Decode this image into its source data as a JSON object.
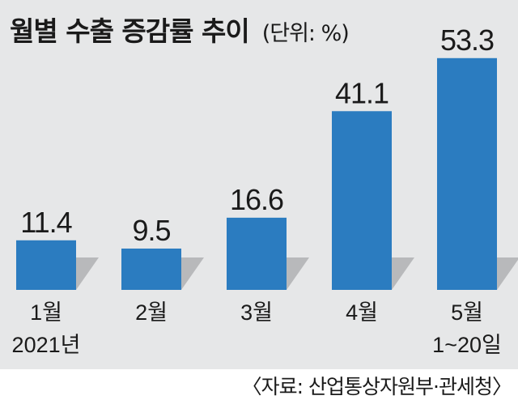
{
  "header": {
    "title": "월별 수출 증감률 추이",
    "unit": "(단위: %)"
  },
  "source": "〈자료: 산업통상자원부·관세청〉",
  "colors": {
    "bar": "#2b7cc0",
    "shadow": "#b8b9bb",
    "panel": "#e6e7e8"
  },
  "chart_data": {
    "type": "bar",
    "title": "월별 수출 증감률 추이",
    "unit": "(단위: %)",
    "categories": [
      [
        "1월",
        "2021년"
      ],
      [
        "2월"
      ],
      [
        "3월"
      ],
      [
        "4월"
      ],
      [
        "5월",
        "1~20일"
      ]
    ],
    "values": [
      11.4,
      9.5,
      16.6,
      41.1,
      53.3
    ],
    "value_labels": [
      "11.4",
      "9.5",
      "16.6",
      "41.1",
      "53.3"
    ],
    "ylim": [
      0,
      60
    ],
    "grid": false,
    "legend": "none"
  }
}
